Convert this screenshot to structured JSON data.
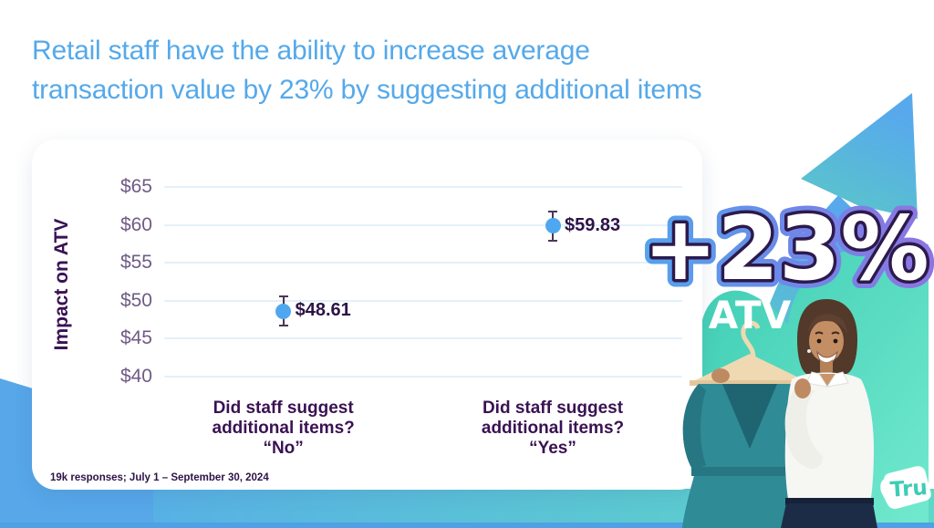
{
  "title": {
    "line1": "Retail staff have the ability to increase average",
    "line2": "transaction value by 23% by suggesting additional items"
  },
  "chart_data": {
    "type": "scatter",
    "title": "",
    "xlabel": "",
    "ylabel": "Impact on ATV",
    "ylim": [
      40,
      65
    ],
    "yticks": [
      "$65",
      "$60",
      "$55",
      "$50",
      "$45",
      "$40"
    ],
    "ytick_values": [
      65,
      60,
      55,
      50,
      45,
      40
    ],
    "grid": true,
    "legend_position": "none",
    "categories": [
      "Did staff suggest additional items? “No”",
      "Did staff suggest additional items? “Yes”"
    ],
    "category_lines": [
      [
        "Did staff suggest",
        "additional items?",
        "“No”"
      ],
      [
        "Did staff suggest",
        "additional items?",
        "“Yes”"
      ]
    ],
    "values": [
      48.61,
      59.83
    ],
    "error": [
      1.9,
      1.9
    ],
    "point_labels": [
      "$48.61",
      "$59.83"
    ],
    "point_color": "#4FA8EF"
  },
  "card": {
    "footnote": "19k responses; July 1 – September 30, 2024"
  },
  "callout": {
    "value": "+23%",
    "label": "ATV"
  },
  "logo": {
    "text": "Tru"
  },
  "colors": {
    "title": "#55A9EA",
    "axis_label": "#3A1253",
    "tick": "#6F5B85",
    "gridline": "#E3F0FA",
    "point": "#4FA8EF",
    "data_label": "#2D1347",
    "accent_blue": "#57A7E9",
    "accent_teal": "#3ECDB4",
    "callout_outline": "#2D1A4C"
  }
}
